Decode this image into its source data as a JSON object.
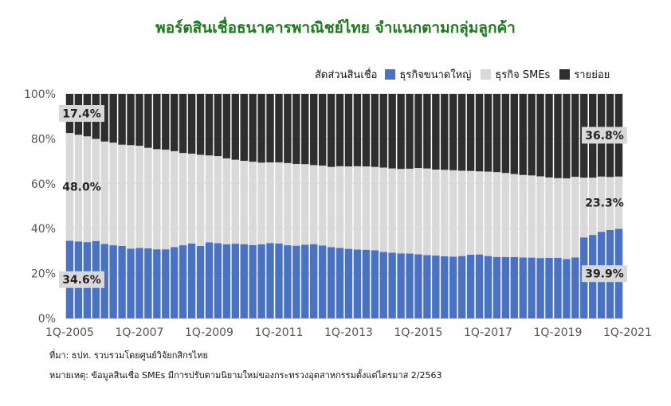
{
  "title": "พอร์ตสินเชื่อธนาคารพาณิชย์ไทย จำแนกตามกลุ่มลูกค้า",
  "legend_title": "สัดส่วนสินเชื่อ",
  "source": "ที่มา: ธปท. รวบรวมโดยศูนย์วิจัยกสิกรไทย",
  "note": "หมายเหตุ: ข้อมูลสินเชื่อ SMEs มีการปรับตามนิยามใหม่ของกระทรวงอุตสาหกรรมตั้งแต่ไตรมาส 2/2563",
  "colors": {
    "large": "#4a72c4",
    "sme": "#d9d9d9",
    "retail": "#2e2e2e",
    "grid": "#d4d4d4",
    "label_box": "#d9d9d9"
  },
  "chart_data": {
    "type": "bar",
    "stacked": true,
    "percent_stacked": true,
    "ylim": [
      0,
      100
    ],
    "y_ticks": [
      "0%",
      "20%",
      "40%",
      "60%",
      "80%",
      "100%"
    ],
    "x_tick_labels": [
      "1Q-2005",
      "1Q-2007",
      "1Q-2009",
      "1Q-2011",
      "1Q-2013",
      "1Q-2015",
      "1Q-2017",
      "1Q-2019",
      "1Q-2021"
    ],
    "x_tick_every": 8,
    "legend_position": "top-right",
    "grid": true,
    "series": [
      {
        "name": "ธุรกิจขนาดใหญ่",
        "color_key": "large",
        "values": [
          34.6,
          34.3,
          34.0,
          34.5,
          33.2,
          32.6,
          32.3,
          31.1,
          31.4,
          31.2,
          30.8,
          30.8,
          31.8,
          32.6,
          33.4,
          32.3,
          33.9,
          33.5,
          33.0,
          33.3,
          33.1,
          32.7,
          33.0,
          33.6,
          33.4,
          32.6,
          32.4,
          32.8,
          33.1,
          32.5,
          31.8,
          31.4,
          31.0,
          30.7,
          30.6,
          30.4,
          29.6,
          29.3,
          29.0,
          28.9,
          28.6,
          28.2,
          28.0,
          27.7,
          27.5,
          27.8,
          28.4,
          28.5,
          27.8,
          27.4,
          27.3,
          27.3,
          27.2,
          27.1,
          26.9,
          27.0,
          27.0,
          26.5,
          27.2,
          36.1,
          37.2,
          38.6,
          39.4,
          39.9
        ]
      },
      {
        "name": "ธุรกิจ SMEs",
        "color_key": "sme",
        "values": [
          48.0,
          47.5,
          47.1,
          45.5,
          45.6,
          45.7,
          45.1,
          46.1,
          45.5,
          44.8,
          44.6,
          44.4,
          42.7,
          41.1,
          40.0,
          40.6,
          38.7,
          38.8,
          38.3,
          37.4,
          37.1,
          37.1,
          36.4,
          35.9,
          36.1,
          36.6,
          36.4,
          35.9,
          35.2,
          35.6,
          35.7,
          36.4,
          36.7,
          37.1,
          37.1,
          37.1,
          37.6,
          37.5,
          37.6,
          37.8,
          38.4,
          38.6,
          38.3,
          38.5,
          38.5,
          38.0,
          37.3,
          37.0,
          37.6,
          37.8,
          37.5,
          37.0,
          36.7,
          36.6,
          36.4,
          35.8,
          35.5,
          35.9,
          35.9,
          26.6,
          25.5,
          24.6,
          23.6,
          23.3
        ]
      },
      {
        "name": "รายย่อย",
        "color_key": "retail",
        "values": [
          17.4,
          18.2,
          18.9,
          20.0,
          21.2,
          21.7,
          22.6,
          22.8,
          23.1,
          24.0,
          24.6,
          24.8,
          25.5,
          26.3,
          26.6,
          27.1,
          27.4,
          27.7,
          28.7,
          29.3,
          29.8,
          30.2,
          30.6,
          30.5,
          30.5,
          30.8,
          31.2,
          31.3,
          31.7,
          31.9,
          32.5,
          32.2,
          32.3,
          32.2,
          32.3,
          32.5,
          32.8,
          33.2,
          33.4,
          33.3,
          33.0,
          33.2,
          33.7,
          33.8,
          34.0,
          34.2,
          34.3,
          34.5,
          34.6,
          34.8,
          35.2,
          35.7,
          36.1,
          36.3,
          36.7,
          37.2,
          37.5,
          37.6,
          36.9,
          37.3,
          37.3,
          36.8,
          37.0,
          36.8
        ]
      }
    ],
    "annotations": [
      {
        "text": "17.4%",
        "series": 2,
        "bar": 0,
        "boxed": true
      },
      {
        "text": "48.0%",
        "series": 1,
        "bar": 0,
        "boxed": false
      },
      {
        "text": "34.6%",
        "series": 0,
        "bar": 0,
        "boxed": true
      },
      {
        "text": "36.8%",
        "series": 2,
        "bar": 63,
        "boxed": true
      },
      {
        "text": "23.3%",
        "series": 1,
        "bar": 63,
        "boxed": false
      },
      {
        "text": "39.9%",
        "series": 0,
        "bar": 63,
        "boxed": true
      }
    ]
  }
}
